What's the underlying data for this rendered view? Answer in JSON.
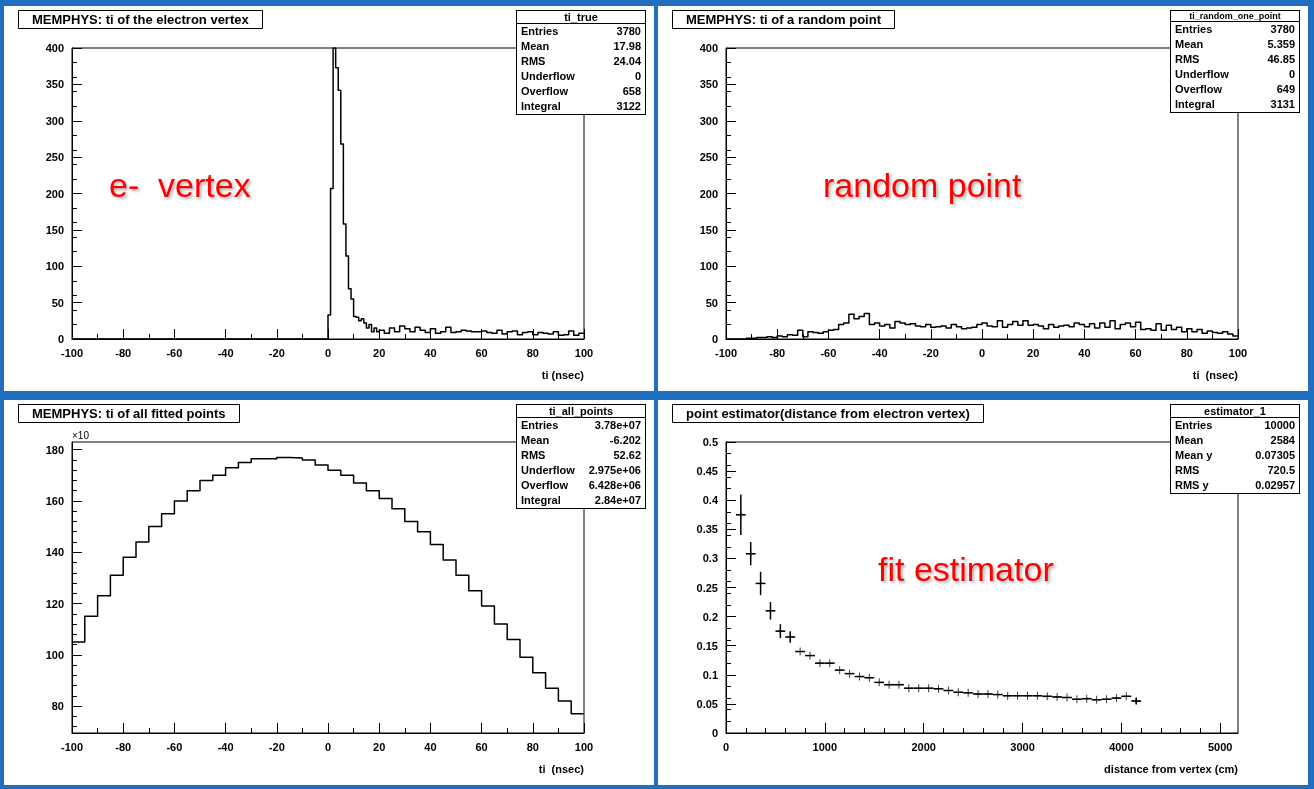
{
  "chart_data": [
    {
      "type": "histogram",
      "title": "MEMPHYS: ti of the electron vertex",
      "xlabel": "ti (nsec)",
      "color": "#000000",
      "bins": [
        -100,
        0,
        1,
        2,
        3,
        4,
        5,
        6,
        7,
        8,
        9,
        10,
        11,
        12,
        13,
        14,
        15,
        16,
        17,
        18,
        19,
        20,
        22,
        24,
        26,
        28,
        30,
        32,
        34,
        36,
        38,
        40,
        42,
        44,
        46,
        48,
        50,
        52,
        54,
        56,
        58,
        60,
        62,
        64,
        66,
        68,
        70,
        72,
        74,
        76,
        78,
        80,
        82,
        84,
        86,
        88,
        90,
        92,
        94,
        96,
        98,
        100
      ],
      "values": [
        0,
        33,
        207,
        400,
        373,
        342,
        268,
        158,
        114,
        69,
        55,
        31,
        30,
        25,
        28,
        22,
        15,
        20,
        10,
        15,
        10,
        12,
        8,
        15,
        10,
        18,
        14,
        10,
        16,
        12,
        9,
        14,
        8,
        10,
        16,
        9,
        10,
        12,
        11,
        10,
        10,
        11,
        9,
        8,
        12,
        7,
        10,
        11,
        6,
        9,
        10,
        6,
        9,
        8,
        7,
        10,
        5,
        6,
        11,
        5,
        8
      ],
      "xlim": [
        -100,
        100
      ],
      "xticks": [
        -100,
        -80,
        -60,
        -40,
        -20,
        0,
        20,
        40,
        60,
        80,
        100
      ],
      "ylim": [
        0,
        400
      ],
      "yticks": [
        0,
        50,
        100,
        150,
        200,
        250,
        300,
        350,
        400
      ],
      "grid": false,
      "annotations": [
        "e-  vertex",
        "ti_true",
        "Entries",
        "3780",
        "Mean",
        "17.98",
        "RMS",
        "24.04",
        "Underflow",
        "0",
        "Overflow",
        "658",
        "Integral",
        "3122"
      ]
    },
    {
      "type": "histogram",
      "title": "MEMPHYS: ti of a random point",
      "xlabel": "ti  (nsec)",
      "color": "#000000",
      "bins": [
        -100,
        -98,
        -96,
        -94,
        -92,
        -90,
        -88,
        -86,
        -84,
        -82,
        -80,
        -78,
        -76,
        -74,
        -72,
        -70,
        -68,
        -66,
        -64,
        -62,
        -60,
        -58,
        -56,
        -54,
        -52,
        -50,
        -48,
        -46,
        -44,
        -42,
        -40,
        -38,
        -36,
        -34,
        -32,
        -30,
        -28,
        -26,
        -24,
        -22,
        -20,
        -18,
        -16,
        -14,
        -12,
        -10,
        -8,
        -6,
        -4,
        -2,
        0,
        2,
        4,
        6,
        8,
        10,
        12,
        14,
        16,
        18,
        20,
        22,
        24,
        26,
        28,
        30,
        32,
        34,
        36,
        38,
        40,
        42,
        44,
        46,
        48,
        50,
        52,
        54,
        56,
        58,
        60,
        62,
        64,
        66,
        68,
        70,
        72,
        74,
        76,
        78,
        80,
        82,
        84,
        86,
        88,
        90,
        92,
        94,
        96,
        98,
        100
      ],
      "values": [
        0,
        0,
        0,
        0,
        1,
        1,
        2,
        2,
        3,
        2,
        4,
        3,
        6,
        5,
        12,
        3,
        10,
        9,
        8,
        10,
        12,
        13,
        20,
        22,
        34,
        28,
        31,
        35,
        20,
        22,
        18,
        20,
        15,
        24,
        22,
        20,
        21,
        18,
        17,
        20,
        16,
        17,
        18,
        15,
        20,
        17,
        14,
        15,
        16,
        20,
        22,
        18,
        17,
        25,
        16,
        20,
        24,
        19,
        25,
        19,
        20,
        18,
        14,
        20,
        16,
        18,
        19,
        17,
        22,
        20,
        17,
        21,
        15,
        22,
        16,
        25,
        14,
        20,
        22,
        17,
        23,
        13,
        14,
        12,
        21,
        12,
        19,
        13,
        16,
        10,
        14,
        10,
        13,
        8,
        11,
        9,
        8,
        10,
        7,
        4
      ],
      "xlim": [
        -100,
        100
      ],
      "xticks": [
        -100,
        -80,
        -60,
        -40,
        -20,
        0,
        20,
        40,
        60,
        80,
        100
      ],
      "ylim": [
        0,
        400
      ],
      "yticks": [
        0,
        50,
        100,
        150,
        200,
        250,
        300,
        350,
        400
      ],
      "grid": false,
      "annotations": [
        "random point",
        "ti_random_one_point",
        "Entries",
        "3780",
        "Mean",
        "5.359",
        "RMS",
        "46.85",
        "Underflow",
        "0",
        "Overflow",
        "649",
        "Integral",
        "3131"
      ]
    },
    {
      "type": "histogram",
      "title": "MEMPHYS: ti of all fitted points",
      "xlabel": "ti  (nsec)",
      "ylabel": "×10",
      "color": "#000000",
      "bins": [
        -100,
        -95,
        -90,
        -85,
        -80,
        -75,
        -70,
        -65,
        -60,
        -55,
        -50,
        -45,
        -40,
        -35,
        -30,
        -25,
        -20,
        -15,
        -10,
        -5,
        0,
        5,
        10,
        15,
        20,
        25,
        30,
        35,
        40,
        45,
        50,
        55,
        60,
        65,
        70,
        75,
        80,
        85,
        90,
        95,
        100
      ],
      "values": [
        105,
        115,
        123,
        131,
        138,
        144,
        150,
        155,
        160,
        164,
        168,
        170,
        173,
        175,
        176.5,
        176.5,
        177,
        176.8,
        176,
        174,
        172,
        170,
        167,
        164,
        161,
        157,
        152,
        148,
        143,
        137,
        131,
        125,
        119,
        112,
        106,
        99,
        93,
        87,
        82,
        77
      ],
      "xlim": [
        -100,
        100
      ],
      "xticks": [
        -100,
        -80,
        -60,
        -40,
        -20,
        0,
        20,
        40,
        60,
        80,
        100
      ],
      "ylim": [
        69.5,
        183
      ],
      "yticks": [
        80,
        100,
        120,
        140,
        160,
        180
      ],
      "grid": false,
      "annotations": [
        "ti_all_points",
        "Entries",
        "3.78e+07",
        "Mean",
        "-6.202",
        "RMS",
        "52.62",
        "Underflow",
        "2.975e+06",
        "Overflow",
        "6.428e+06",
        "Integral",
        "2.84e+07"
      ]
    },
    {
      "type": "scatter",
      "title": "point estimator(distance from electron vertex)",
      "xlabel": "distance from vertex (cm)",
      "color": "#000000",
      "x": [
        150,
        250,
        350,
        450,
        550,
        650,
        750,
        850,
        950,
        1050,
        1150,
        1250,
        1350,
        1450,
        1550,
        1650,
        1750,
        1850,
        1950,
        2050,
        2150,
        2250,
        2350,
        2450,
        2550,
        2650,
        2750,
        2850,
        2950,
        3050,
        3150,
        3250,
        3350,
        3450,
        3550,
        3650,
        3750,
        3850,
        3950,
        4050,
        4150
      ],
      "values": [
        0.375,
        0.308,
        0.257,
        0.21,
        0.175,
        0.165,
        0.14,
        0.133,
        0.12,
        0.12,
        0.108,
        0.102,
        0.097,
        0.095,
        0.087,
        0.083,
        0.083,
        0.077,
        0.077,
        0.077,
        0.076,
        0.073,
        0.07,
        0.069,
        0.067,
        0.067,
        0.066,
        0.064,
        0.064,
        0.064,
        0.064,
        0.063,
        0.062,
        0.061,
        0.058,
        0.059,
        0.057,
        0.058,
        0.06,
        0.063,
        0.055
      ],
      "errors": [
        0.035,
        0.02,
        0.02,
        0.015,
        0.012,
        0.01,
        null,
        null,
        null,
        null,
        null,
        null,
        null,
        null,
        null,
        null,
        null,
        null,
        null,
        null,
        null,
        null,
        null,
        null,
        null,
        null,
        null,
        null,
        null,
        null,
        null,
        null,
        null,
        null,
        null,
        null,
        null,
        null,
        null,
        null,
        0.005
      ],
      "xerrors": [
        50,
        50,
        50,
        50,
        50,
        50,
        50,
        50,
        50,
        50,
        50,
        50,
        50,
        50,
        50,
        50,
        50,
        50,
        50,
        50,
        50,
        50,
        50,
        50,
        50,
        50,
        50,
        50,
        50,
        50,
        50,
        50,
        50,
        50,
        50,
        50,
        50,
        50,
        50,
        50,
        50
      ],
      "xlim": [
        0,
        5180
      ],
      "xticks": [
        0,
        1000,
        2000,
        3000,
        4000,
        5000
      ],
      "ylim": [
        0,
        0.5
      ],
      "yticks": [
        0,
        0.05,
        0.1,
        0.15,
        0.2,
        0.25,
        0.3,
        0.35,
        0.4,
        0.45,
        0.5
      ],
      "grid": false,
      "marker": "cross",
      "annotations": [
        "fit estimator",
        "estimator_1",
        "Entries",
        "10000",
        "Mean",
        "2584",
        "Mean y",
        "0.07305",
        "RMS",
        "720.5",
        "RMS y",
        "0.02957"
      ]
    }
  ]
}
